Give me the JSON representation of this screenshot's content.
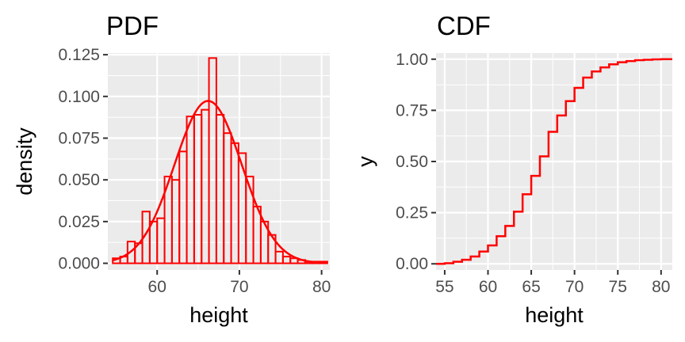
{
  "chart_data": [
    {
      "type": "histogram",
      "title": "PDF",
      "xlabel": "height",
      "ylabel": "density",
      "xlim": [
        54,
        81
      ],
      "ylim": [
        -0.004,
        0.126
      ],
      "xticks": [
        60,
        70,
        80
      ],
      "yticks": [
        0.0,
        0.025,
        0.05,
        0.075,
        0.1,
        0.125
      ],
      "ytick_labels": [
        "0.000",
        "0.025",
        "0.050",
        "0.075",
        "0.100",
        "0.125"
      ],
      "grid": true,
      "bin_width": 0.9,
      "bins": [
        {
          "x0": 54.6,
          "x1": 55.5,
          "density": 0.003
        },
        {
          "x0": 55.5,
          "x1": 56.4,
          "density": 0.004
        },
        {
          "x0": 56.4,
          "x1": 57.3,
          "density": 0.013
        },
        {
          "x0": 57.3,
          "x1": 58.2,
          "density": 0.012
        },
        {
          "x0": 58.2,
          "x1": 59.1,
          "density": 0.031
        },
        {
          "x0": 59.1,
          "x1": 60.0,
          "density": 0.025
        },
        {
          "x0": 60.0,
          "x1": 60.9,
          "density": 0.027
        },
        {
          "x0": 60.9,
          "x1": 61.8,
          "density": 0.052
        },
        {
          "x0": 61.8,
          "x1": 62.7,
          "density": 0.05
        },
        {
          "x0": 62.7,
          "x1": 63.6,
          "density": 0.067
        },
        {
          "x0": 63.6,
          "x1": 64.5,
          "density": 0.088
        },
        {
          "x0": 64.5,
          "x1": 65.4,
          "density": 0.089
        },
        {
          "x0": 65.4,
          "x1": 66.3,
          "density": 0.092
        },
        {
          "x0": 66.3,
          "x1": 67.2,
          "density": 0.123
        },
        {
          "x0": 67.2,
          "x1": 68.1,
          "density": 0.089
        },
        {
          "x0": 68.1,
          "x1": 69.0,
          "density": 0.078
        },
        {
          "x0": 69.0,
          "x1": 69.9,
          "density": 0.072
        },
        {
          "x0": 69.9,
          "x1": 70.8,
          "density": 0.066
        },
        {
          "x0": 70.8,
          "x1": 71.7,
          "density": 0.052
        },
        {
          "x0": 71.7,
          "x1": 72.6,
          "density": 0.034
        },
        {
          "x0": 72.6,
          "x1": 73.5,
          "density": 0.025
        },
        {
          "x0": 73.5,
          "x1": 74.4,
          "density": 0.017
        },
        {
          "x0": 74.4,
          "x1": 75.3,
          "density": 0.007
        },
        {
          "x0": 75.3,
          "x1": 76.2,
          "density": 0.004
        },
        {
          "x0": 76.2,
          "x1": 77.1,
          "density": 0.003
        },
        {
          "x0": 77.1,
          "x1": 78.0,
          "density": 0.002
        },
        {
          "x0": 78.0,
          "x1": 78.9,
          "density": 0.001
        },
        {
          "x0": 78.9,
          "x1": 79.8,
          "density": 0.001
        },
        {
          "x0": 79.8,
          "x1": 80.7,
          "density": 0.001
        }
      ],
      "density_curve": {
        "type": "normal",
        "mean": 66.2,
        "sd": 4.1,
        "range": [
          54.6,
          80.7
        ]
      },
      "color": "#ff0000",
      "panel_bg": "#ebebeb"
    },
    {
      "type": "step",
      "title": "CDF",
      "xlabel": "height",
      "ylabel": "y",
      "xlim": [
        54.0,
        81.3
      ],
      "ylim": [
        -0.03,
        1.03
      ],
      "xticks": [
        55,
        60,
        65,
        70,
        75,
        80
      ],
      "yticks": [
        0.0,
        0.25,
        0.5,
        0.75,
        1.0
      ],
      "ytick_labels": [
        "0.00",
        "0.25",
        "0.50",
        "0.75",
        "1.00"
      ],
      "grid": true,
      "x": [
        54.0,
        55.0,
        56.0,
        57.0,
        58.0,
        59.0,
        60.0,
        61.0,
        62.0,
        63.0,
        64.0,
        65.0,
        66.0,
        67.0,
        68.0,
        69.0,
        70.0,
        71.0,
        72.0,
        73.0,
        74.0,
        75.0,
        76.0,
        77.0,
        78.0,
        79.0,
        80.0,
        81.3
      ],
      "y": [
        0.0,
        0.003,
        0.01,
        0.02,
        0.036,
        0.06,
        0.09,
        0.135,
        0.185,
        0.255,
        0.34,
        0.43,
        0.525,
        0.645,
        0.725,
        0.795,
        0.86,
        0.91,
        0.94,
        0.96,
        0.975,
        0.985,
        0.991,
        0.995,
        0.997,
        0.999,
        1.0,
        1.0
      ],
      "color": "#ff0000",
      "panel_bg": "#ebebeb"
    }
  ]
}
